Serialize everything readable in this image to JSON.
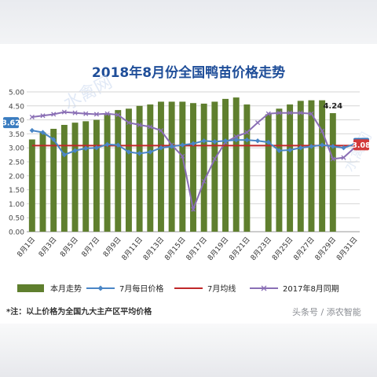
{
  "title": "2018年8月份全国鸭苗价格走势",
  "footnote": "*注：以上价格为全国九大主产区平均价格",
  "source": "头条号 / 添农智能",
  "watermark": "水禽网",
  "colors": {
    "bar": "#5f7f2e",
    "line_jul": "#4a86c6",
    "avg": "#c0282a",
    "line_2017": "#8a6fb5",
    "title": "#1f4e99",
    "callout_blue": "#3a7cc0",
    "callout_red": "#d23a3a"
  },
  "chart_data": {
    "type": "bar",
    "title": "2018年8月份全国鸭苗价格走势",
    "ylim": [
      0,
      5
    ],
    "yticks": [
      "0.00",
      "0.50",
      "1.00",
      "1.50",
      "2.00",
      "2.50",
      "3.00",
      "3.50",
      "4.00",
      "4.50",
      "5.00"
    ],
    "x": [
      "8月1日",
      "8月2日",
      "8月3日",
      "8月4日",
      "8月5日",
      "8月6日",
      "8月7日",
      "8月8日",
      "8月9日",
      "8月10日",
      "8月11日",
      "8月12日",
      "8月13日",
      "8月14日",
      "8月15日",
      "8月16日",
      "8月17日",
      "8月18日",
      "8月19日",
      "8月20日",
      "8月21日",
      "8月22日",
      "8月23日",
      "8月24日",
      "8月25日",
      "8月26日",
      "8月27日",
      "8月28日",
      "8月29日",
      "8月30日",
      "8月31日"
    ],
    "xtick_labels": [
      "8月1日",
      "8月3日",
      "8月5日",
      "8月7日",
      "8月9日",
      "8月11日",
      "8月13日",
      "8月15日",
      "8月17日",
      "8月19日",
      "8月21日",
      "8月23日",
      "8月25日",
      "8月27日",
      "8月29日",
      "8月31日"
    ],
    "series": [
      {
        "name": "本月走势",
        "kind": "bar",
        "values": [
          3.3,
          3.55,
          3.68,
          3.82,
          3.9,
          3.95,
          4.0,
          4.2,
          4.35,
          4.4,
          4.5,
          4.55,
          4.65,
          4.65,
          4.65,
          4.6,
          4.58,
          4.65,
          4.75,
          4.8,
          4.55,
          null,
          4.2,
          4.4,
          4.55,
          4.68,
          4.7,
          4.7,
          4.24,
          null,
          null
        ]
      },
      {
        "name": "7月每日价格",
        "kind": "line",
        "values": [
          3.62,
          3.55,
          3.3,
          2.75,
          2.9,
          2.98,
          3.0,
          3.12,
          3.1,
          2.85,
          2.8,
          2.85,
          3.0,
          3.05,
          3.1,
          3.15,
          3.25,
          3.22,
          3.25,
          3.28,
          3.28,
          3.25,
          3.2,
          2.9,
          2.92,
          3.0,
          3.05,
          3.1,
          3.05,
          3.0,
          3.13
        ]
      },
      {
        "name": "7月均线",
        "kind": "line",
        "values": [
          3.08,
          3.08,
          3.08,
          3.08,
          3.08,
          3.08,
          3.08,
          3.08,
          3.08,
          3.08,
          3.08,
          3.08,
          3.08,
          3.08,
          3.08,
          3.08,
          3.08,
          3.08,
          3.08,
          3.08,
          3.08,
          3.08,
          3.08,
          3.08,
          3.08,
          3.08,
          3.08,
          3.08,
          3.08,
          3.08,
          3.08
        ]
      },
      {
        "name": "2017年8月同期",
        "kind": "line",
        "values": [
          4.1,
          4.15,
          4.2,
          4.28,
          4.25,
          4.22,
          4.2,
          4.22,
          4.18,
          3.9,
          3.82,
          3.75,
          3.62,
          3.1,
          2.7,
          0.8,
          1.8,
          2.6,
          3.2,
          3.4,
          3.55,
          3.9,
          4.22,
          4.25,
          4.25,
          4.25,
          4.22,
          3.6,
          2.6,
          2.65,
          3.0
        ]
      }
    ],
    "annotations": [
      {
        "label": "3.62",
        "series": "7月每日价格",
        "at": "8月1日"
      },
      {
        "label": "3.13",
        "series": "7月每日价格",
        "at": "8月31日"
      },
      {
        "label": "3.08",
        "series": "7月均线",
        "at": "8月31日"
      },
      {
        "label": "4.24",
        "series": "本月走势",
        "at": "8月29日"
      }
    ],
    "grid": true,
    "legend_position": "bottom"
  }
}
